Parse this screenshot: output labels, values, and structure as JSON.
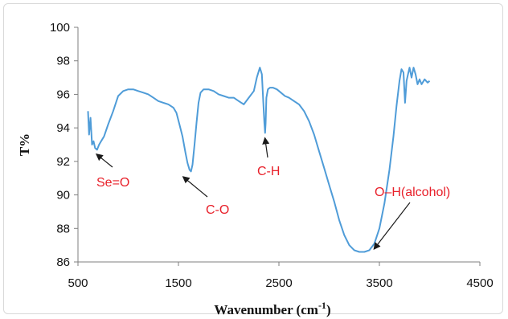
{
  "chart_data": {
    "type": "line",
    "xlabel_main": "Wavenumber (cm",
    "xlabel_sup": "-1",
    "xlabel_close": ")",
    "ylabel": "T%",
    "xlim": [
      500,
      4500
    ],
    "ylim": [
      86,
      100
    ],
    "x_ticks": [
      500,
      1500,
      2500,
      3500,
      4500
    ],
    "y_ticks": [
      86,
      88,
      90,
      92,
      94,
      96,
      98,
      100
    ],
    "line_color": "#4f9cd8",
    "annotation_color": "#e8202a",
    "grid": false,
    "series": [
      {
        "x": [
          600,
          610,
          625,
          640,
          655,
          670,
          690,
          710,
          730,
          760,
          800,
          850,
          900,
          950,
          1000,
          1050,
          1100,
          1150,
          1200,
          1250,
          1300,
          1350,
          1400,
          1450,
          1480,
          1510,
          1540,
          1570,
          1590,
          1610,
          1625,
          1640,
          1660,
          1680,
          1700,
          1720,
          1750,
          1800,
          1850,
          1900,
          1950,
          2000,
          2050,
          2100,
          2150,
          2200,
          2250,
          2280,
          2310,
          2330,
          2345,
          2355,
          2362,
          2368,
          2375,
          2390,
          2410,
          2440,
          2480,
          2520,
          2560,
          2600,
          2650,
          2700,
          2750,
          2800,
          2850,
          2900,
          2950,
          3000,
          3050,
          3100,
          3150,
          3200,
          3250,
          3300,
          3350,
          3400,
          3450,
          3500,
          3550,
          3600,
          3640,
          3670,
          3700,
          3720,
          3740,
          3755,
          3770,
          3785,
          3800,
          3820,
          3840,
          3860,
          3880,
          3900,
          3920,
          3950,
          3980,
          4000
        ],
        "y": [
          95.0,
          93.6,
          94.6,
          93.0,
          93.2,
          92.8,
          92.7,
          93.0,
          93.2,
          93.5,
          94.2,
          95.0,
          95.9,
          96.2,
          96.3,
          96.3,
          96.2,
          96.1,
          96.0,
          95.8,
          95.6,
          95.5,
          95.4,
          95.2,
          94.9,
          94.2,
          93.5,
          92.5,
          91.9,
          91.5,
          91.4,
          91.8,
          93.0,
          94.3,
          95.5,
          96.1,
          96.3,
          96.3,
          96.2,
          96.0,
          95.9,
          95.8,
          95.8,
          95.6,
          95.4,
          95.8,
          96.2,
          97.0,
          97.6,
          97.2,
          95.5,
          94.3,
          93.7,
          94.3,
          95.8,
          96.3,
          96.4,
          96.4,
          96.3,
          96.1,
          95.9,
          95.8,
          95.6,
          95.4,
          95.0,
          94.4,
          93.6,
          92.6,
          91.6,
          90.6,
          89.6,
          88.5,
          87.6,
          87.0,
          86.7,
          86.6,
          86.6,
          86.7,
          87.1,
          88.0,
          89.5,
          91.5,
          93.5,
          95.3,
          96.8,
          97.5,
          97.3,
          95.5,
          96.8,
          97.2,
          97.6,
          97.0,
          97.6,
          97.2,
          96.6,
          96.9,
          96.6,
          96.9,
          96.7,
          96.8
        ]
      }
    ],
    "annotations": [
      {
        "text": "Se=O",
        "points_to": [
          720,
          92.7
        ]
      },
      {
        "text": "C-O",
        "points_to": [
          1630,
          91.4
        ]
      },
      {
        "text": "C-H",
        "points_to": [
          2362,
          93.7
        ]
      },
      {
        "text": "O–H(alcohol)",
        "points_to": [
          3370,
          86.7
        ]
      }
    ]
  }
}
